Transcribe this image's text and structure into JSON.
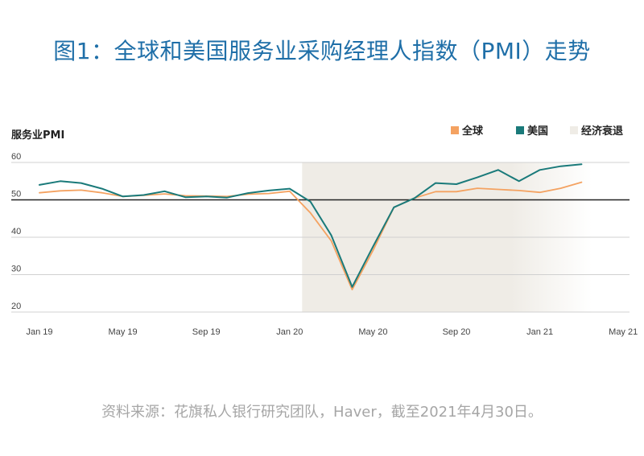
{
  "title": "图1：全球和美国服务业采购经理人指数（PMI）走势",
  "source": "资料来源：花旗私人银行研究团队，Haver，截至2021年4月30日。",
  "chart_data": {
    "type": "line",
    "ylabel": "服务业PMI",
    "ylim": [
      20,
      60
    ],
    "yticks": [
      20,
      30,
      40,
      50,
      60
    ],
    "xticks": [
      "Jan 19",
      "May 19",
      "Sep 19",
      "Jan 20",
      "May 20",
      "Sep 20",
      "Jan 21",
      "May 21"
    ],
    "x": [
      "2019-01",
      "2019-02",
      "2019-03",
      "2019-04",
      "2019-05",
      "2019-06",
      "2019-07",
      "2019-08",
      "2019-09",
      "2019-10",
      "2019-11",
      "2019-12",
      "2020-01",
      "2020-02",
      "2020-03",
      "2020-04",
      "2020-05",
      "2020-06",
      "2020-07",
      "2020-08",
      "2020-09",
      "2020-10",
      "2020-11",
      "2020-12",
      "2021-01",
      "2021-02",
      "2021-03"
    ],
    "series": [
      {
        "name": "全球",
        "color": "#f4a261",
        "values": [
          51.9,
          52.4,
          52.6,
          51.9,
          50.9,
          51.2,
          51.6,
          51.1,
          51.0,
          50.9,
          51.5,
          51.7,
          52.3,
          46.5,
          39.0,
          26.0,
          36.5,
          48.0,
          50.5,
          52.2,
          52.2,
          53.1,
          52.8,
          52.5,
          52.0,
          53.1,
          54.7
        ]
      },
      {
        "name": "美国",
        "color": "#1a7a7a",
        "values": [
          54.0,
          55.0,
          54.5,
          53.0,
          50.9,
          51.3,
          52.3,
          50.7,
          50.9,
          50.6,
          51.8,
          52.5,
          53.0,
          49.5,
          40.5,
          26.7,
          37.5,
          48.0,
          50.5,
          54.5,
          54.2,
          56.0,
          58.0,
          55.0,
          58.0,
          59.0,
          59.5
        ]
      }
    ],
    "recession": {
      "name": "经济衰退",
      "from": "2020-02",
      "to": "2021-03",
      "color": "#efece6"
    },
    "grid": true,
    "legend_position": "top-right"
  }
}
